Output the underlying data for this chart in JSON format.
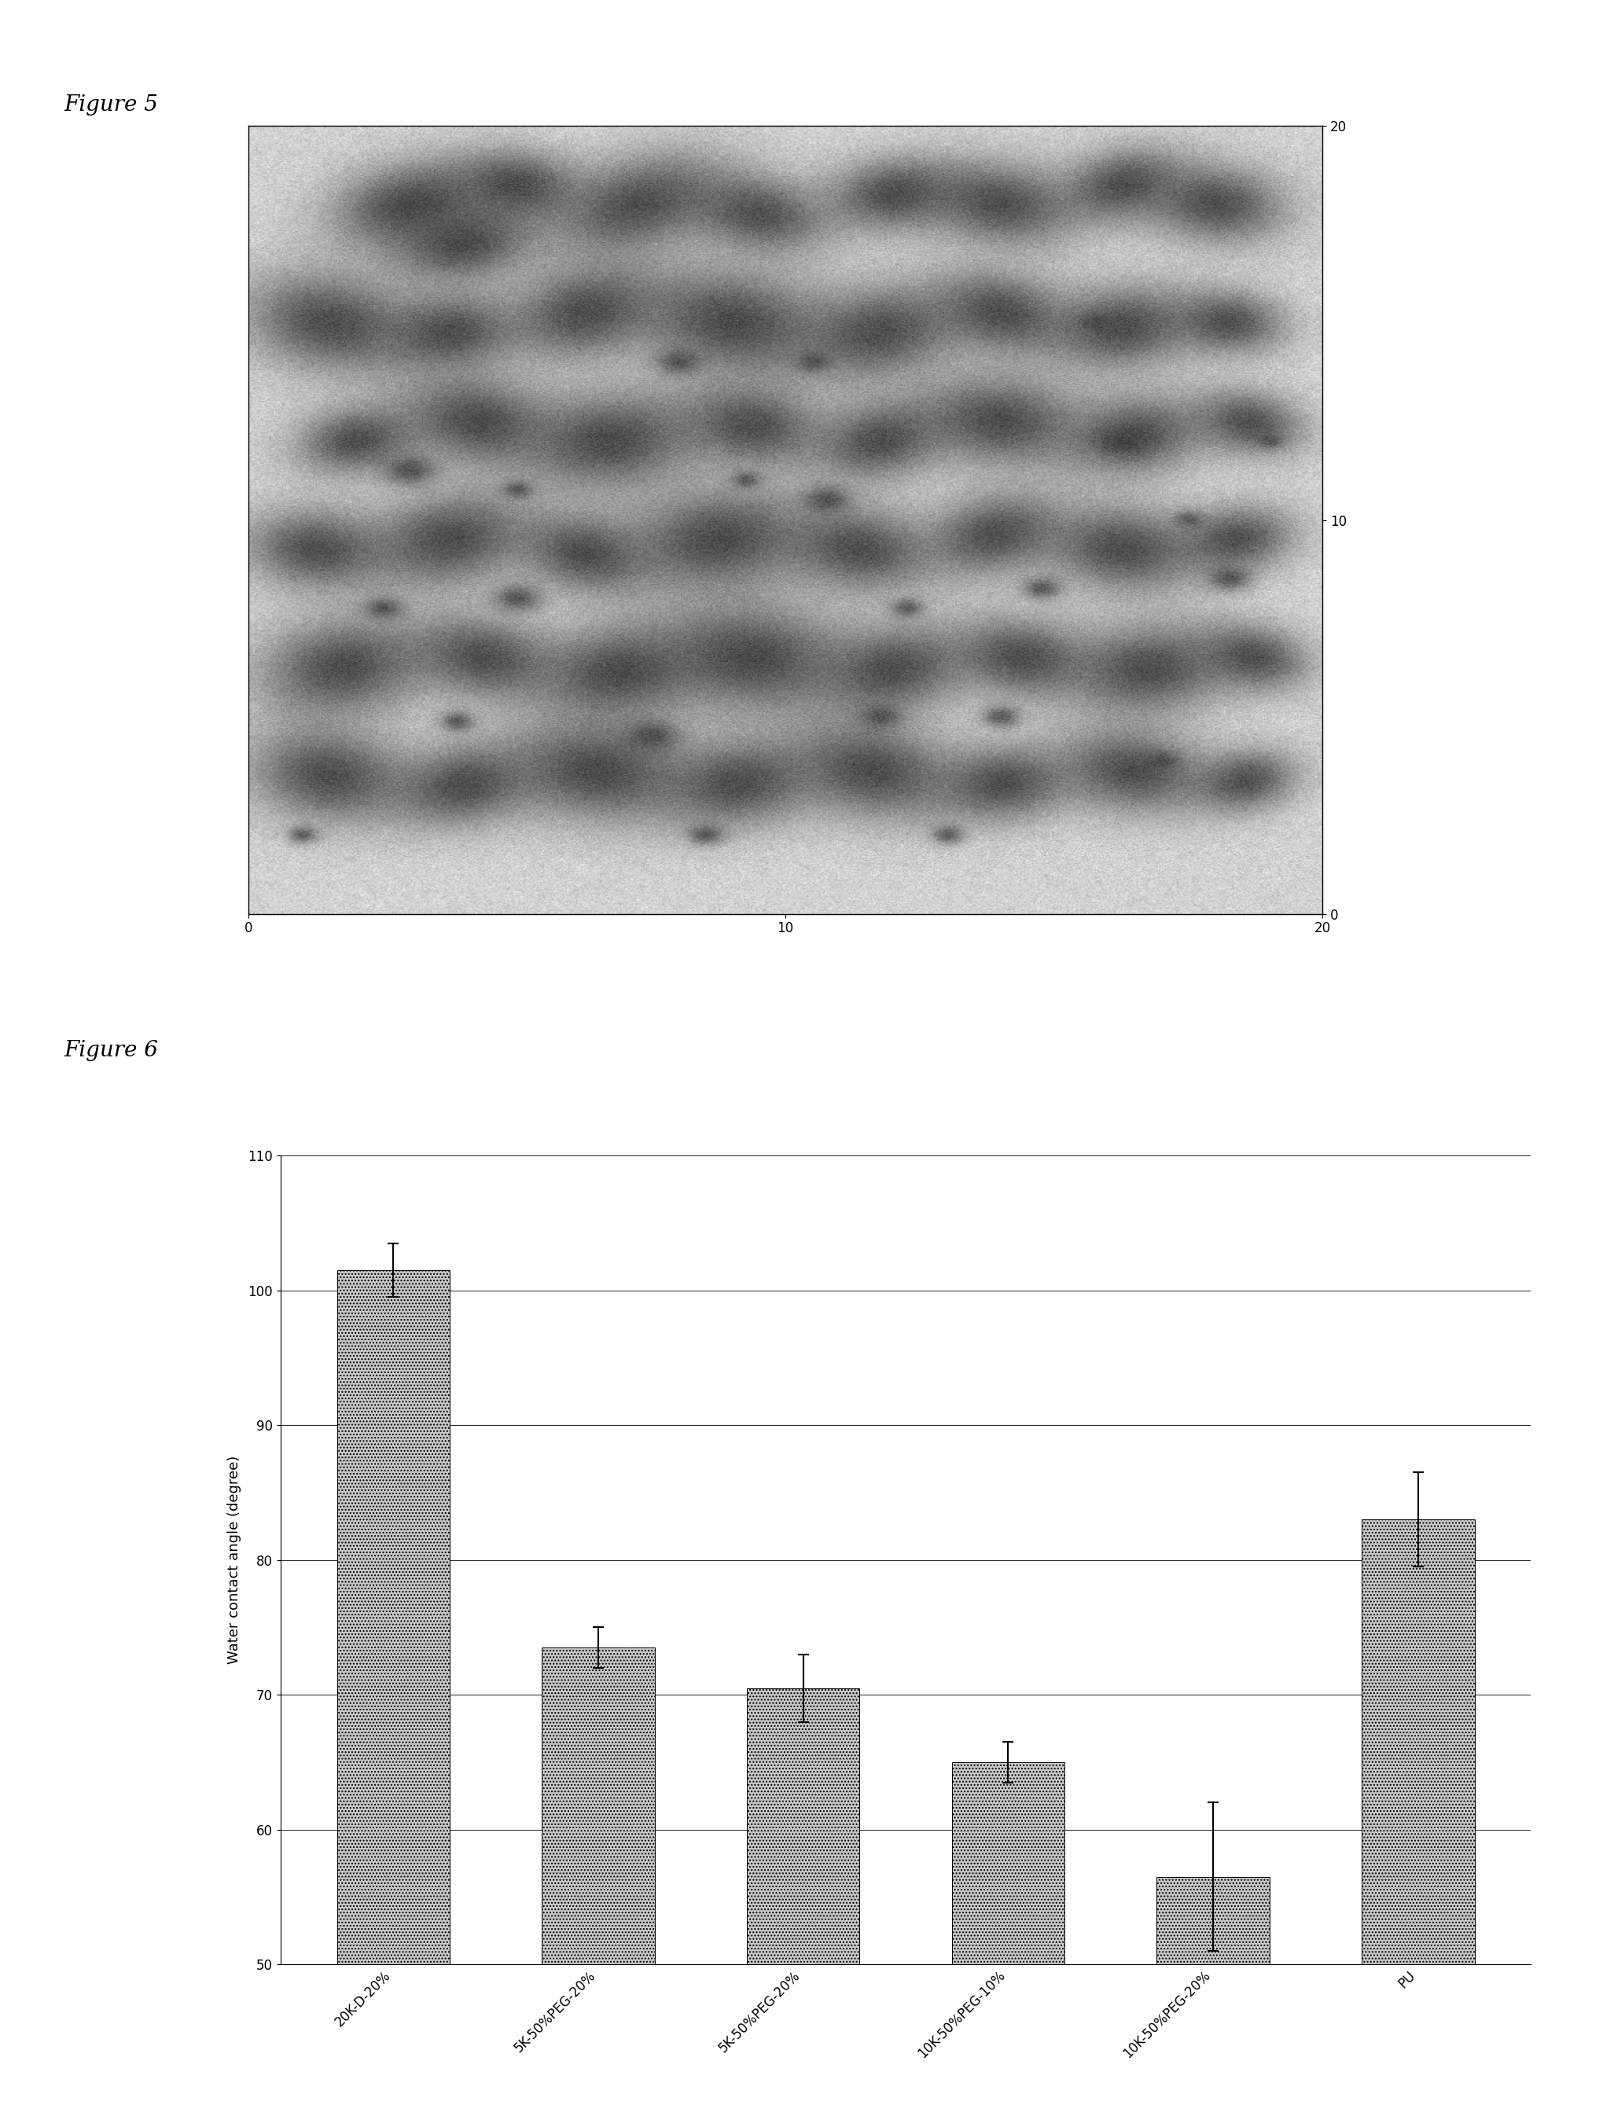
{
  "fig5_title": "Figure 5",
  "fig6_title": "Figure 6",
  "fig5_xlim": [
    0,
    20.0
  ],
  "fig5_ylim": [
    0,
    20.0
  ],
  "fig5_xticks": [
    0,
    10.0,
    20.0
  ],
  "fig5_yticks": [
    0,
    10.0,
    20.0
  ],
  "bar_categories": [
    "20K-D-20%",
    "5K-50%PEG-20%",
    "5K-50%PEG-20%",
    "10K-50%PEG-10%",
    "10K-50%PEG-20%",
    "PU"
  ],
  "bar_values": [
    101.5,
    73.5,
    70.5,
    65.0,
    56.5,
    83.0
  ],
  "bar_errors": [
    2.0,
    1.5,
    2.5,
    1.5,
    5.5,
    3.5
  ],
  "bar_color": "#c8c8c8",
  "bar_hatch": "....",
  "ylabel": "Water contact angle (degree)",
  "ylim_bar": [
    50,
    110
  ],
  "yticks_bar": [
    50,
    60,
    70,
    80,
    90,
    100,
    110
  ],
  "background_color": "#ffffff",
  "title_fontsize": 20,
  "fig5_label_fontsize": 12,
  "bar_label_fontsize": 12,
  "bar_ylabel_fontsize": 13
}
